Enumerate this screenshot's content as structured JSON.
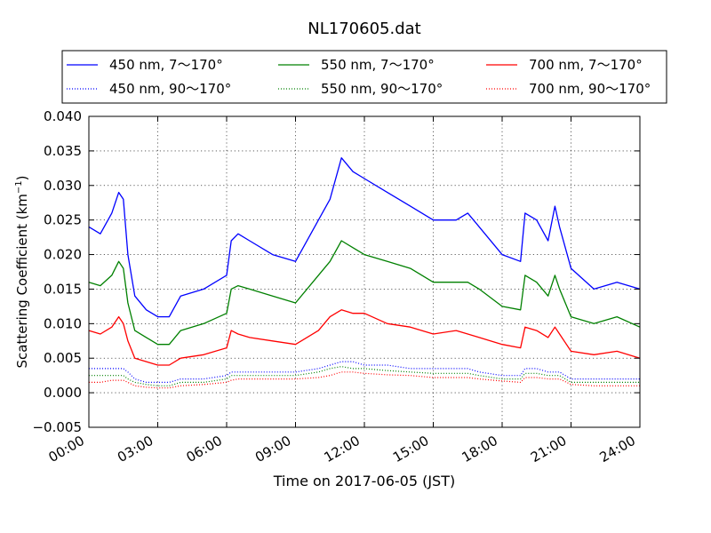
{
  "chart_data": {
    "type": "line",
    "title": "NL170605.dat",
    "xlabel": "Time on 2017-06-05 (JST)",
    "ylabel": "Scattering Coefficient (km",
    "ylabel_sup": "−1",
    "ylabel_close": ")",
    "x_unit": "hours",
    "xlim": [
      0,
      24
    ],
    "ylim": [
      -0.005,
      0.04
    ],
    "x_ticks": [
      0,
      3,
      6,
      9,
      12,
      15,
      18,
      21,
      24
    ],
    "x_tick_labels": [
      "00:00",
      "03:00",
      "06:00",
      "09:00",
      "12:00",
      "15:00",
      "18:00",
      "21:00",
      "24:00"
    ],
    "y_ticks": [
      -0.005,
      0,
      0.005,
      0.01,
      0.015,
      0.02,
      0.025,
      0.03,
      0.035,
      0.04
    ],
    "y_tick_labels": [
      "−0.005",
      "0.000",
      "0.005",
      "0.010",
      "0.015",
      "0.020",
      "0.025",
      "0.030",
      "0.035",
      "0.040"
    ],
    "grid": true,
    "legend_position": "top, above plot, 3 columns",
    "x": [
      0,
      0.5,
      1,
      1.3,
      1.5,
      1.7,
      2,
      2.5,
      3,
      3.5,
      4,
      5,
      6,
      6.2,
      6.5,
      7,
      8,
      9,
      10,
      10.5,
      11,
      11.5,
      12,
      13,
      14,
      15,
      16,
      16.5,
      17,
      18,
      18.8,
      19,
      19.5,
      20,
      20.3,
      20.5,
      21,
      22,
      23,
      24
    ],
    "series": [
      {
        "name": "450 nm, 7～170°",
        "color": "#0000ff",
        "style": "solid",
        "values": [
          0.024,
          0.023,
          0.026,
          0.029,
          0.028,
          0.02,
          0.014,
          0.012,
          0.011,
          0.011,
          0.014,
          0.015,
          0.017,
          0.022,
          0.023,
          0.022,
          0.02,
          0.019,
          0.025,
          0.028,
          0.034,
          0.032,
          0.031,
          0.029,
          0.027,
          0.025,
          0.025,
          0.026,
          0.024,
          0.02,
          0.019,
          0.026,
          0.025,
          0.022,
          0.027,
          0.024,
          0.018,
          0.015,
          0.016,
          0.015
        ]
      },
      {
        "name": "550 nm, 7～170°",
        "color": "#008000",
        "style": "solid",
        "values": [
          0.016,
          0.0155,
          0.017,
          0.019,
          0.018,
          0.013,
          0.009,
          0.008,
          0.007,
          0.007,
          0.009,
          0.01,
          0.0115,
          0.015,
          0.0155,
          0.015,
          0.014,
          0.013,
          0.017,
          0.019,
          0.022,
          0.021,
          0.02,
          0.019,
          0.018,
          0.016,
          0.016,
          0.016,
          0.015,
          0.0125,
          0.012,
          0.017,
          0.016,
          0.014,
          0.017,
          0.015,
          0.011,
          0.01,
          0.011,
          0.0095
        ]
      },
      {
        "name": "700 nm, 7～170°",
        "color": "#ff0000",
        "style": "solid",
        "values": [
          0.009,
          0.0085,
          0.0095,
          0.011,
          0.01,
          0.0075,
          0.005,
          0.0045,
          0.004,
          0.004,
          0.005,
          0.0055,
          0.0065,
          0.009,
          0.0085,
          0.008,
          0.0075,
          0.007,
          0.009,
          0.011,
          0.012,
          0.0115,
          0.0115,
          0.01,
          0.0095,
          0.0085,
          0.009,
          0.0085,
          0.008,
          0.007,
          0.0065,
          0.0095,
          0.009,
          0.008,
          0.0095,
          0.0085,
          0.006,
          0.0055,
          0.006,
          0.005
        ]
      },
      {
        "name": "450 nm, 90～170°",
        "color": "#0000ff",
        "style": "dotted",
        "values": [
          0.0035,
          0.0035,
          0.0035,
          0.0035,
          0.0035,
          0.003,
          0.002,
          0.0015,
          0.0015,
          0.0015,
          0.002,
          0.002,
          0.0025,
          0.003,
          0.003,
          0.003,
          0.003,
          0.003,
          0.0035,
          0.004,
          0.0045,
          0.0045,
          0.004,
          0.004,
          0.0035,
          0.0035,
          0.0035,
          0.0035,
          0.003,
          0.0025,
          0.0025,
          0.0035,
          0.0035,
          0.003,
          0.003,
          0.003,
          0.002,
          0.002,
          0.002,
          0.002
        ]
      },
      {
        "name": "550 nm, 90～170°",
        "color": "#008000",
        "style": "dotted",
        "values": [
          0.0025,
          0.0025,
          0.0025,
          0.0025,
          0.0025,
          0.002,
          0.0015,
          0.0012,
          0.001,
          0.001,
          0.0015,
          0.0015,
          0.002,
          0.0025,
          0.0025,
          0.0025,
          0.0025,
          0.0025,
          0.003,
          0.0035,
          0.0038,
          0.0035,
          0.0035,
          0.0032,
          0.003,
          0.0028,
          0.0028,
          0.0028,
          0.0025,
          0.002,
          0.002,
          0.0028,
          0.0028,
          0.0025,
          0.0025,
          0.0025,
          0.0015,
          0.0015,
          0.0015,
          0.0015
        ]
      },
      {
        "name": "700 nm, 90～170°",
        "color": "#ff0000",
        "style": "dotted",
        "values": [
          0.0015,
          0.0015,
          0.0018,
          0.0018,
          0.0018,
          0.0015,
          0.001,
          0.0008,
          0.0007,
          0.0007,
          0.001,
          0.0012,
          0.0015,
          0.0018,
          0.002,
          0.002,
          0.002,
          0.002,
          0.0022,
          0.0025,
          0.003,
          0.003,
          0.0028,
          0.0026,
          0.0025,
          0.0022,
          0.0022,
          0.0022,
          0.002,
          0.0017,
          0.0015,
          0.0022,
          0.0022,
          0.002,
          0.002,
          0.002,
          0.0012,
          0.001,
          0.001,
          0.001
        ]
      }
    ]
  }
}
